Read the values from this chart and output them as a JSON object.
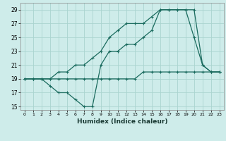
{
  "xlabel": "Humidex (Indice chaleur)",
  "bg_color": "#ceecea",
  "grid_color": "#aad4cf",
  "line_color": "#1a6b5e",
  "xlim": [
    -0.5,
    23.5
  ],
  "ylim": [
    14.5,
    30.0
  ],
  "xticks": [
    0,
    1,
    2,
    3,
    4,
    5,
    6,
    7,
    8,
    9,
    10,
    11,
    12,
    13,
    14,
    15,
    16,
    17,
    18,
    19,
    20,
    21,
    22,
    23
  ],
  "yticks": [
    15,
    17,
    19,
    21,
    23,
    25,
    27,
    29
  ],
  "line1_x": [
    0,
    1,
    2,
    3,
    4,
    5,
    6,
    7,
    8,
    9,
    10,
    11,
    12,
    13,
    14,
    15,
    16,
    17,
    18,
    19,
    20,
    21,
    22,
    23
  ],
  "line1_y": [
    19,
    19,
    19,
    19,
    19,
    19,
    19,
    19,
    19,
    19,
    19,
    19,
    19,
    19,
    20,
    20,
    20,
    20,
    20,
    20,
    20,
    20,
    20,
    20
  ],
  "line2_x": [
    0,
    1,
    2,
    3,
    4,
    5,
    6,
    7,
    8,
    9,
    10,
    11,
    12,
    13,
    14,
    15,
    16,
    17,
    18,
    19,
    20,
    21,
    22,
    23
  ],
  "line2_y": [
    19,
    19,
    19,
    18,
    17,
    17,
    16,
    15,
    15,
    21,
    23,
    23,
    24,
    24,
    25,
    26,
    29,
    29,
    29,
    29,
    25,
    21,
    20,
    20
  ],
  "line3_x": [
    0,
    1,
    2,
    3,
    4,
    5,
    6,
    7,
    8,
    9,
    10,
    11,
    12,
    13,
    14,
    15,
    16,
    17,
    18,
    19,
    20,
    21,
    22,
    23
  ],
  "line3_y": [
    19,
    19,
    19,
    19,
    20,
    20,
    21,
    21,
    22,
    23,
    25,
    26,
    27,
    27,
    27,
    28,
    29,
    29,
    29,
    29,
    29,
    21,
    20,
    20
  ]
}
